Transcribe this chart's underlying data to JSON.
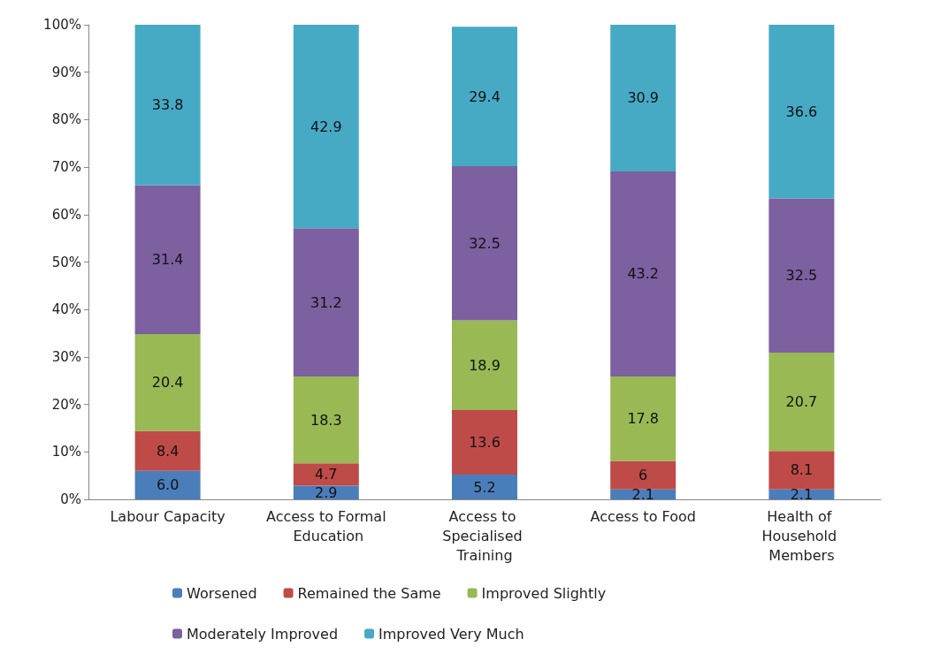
{
  "chart_data": {
    "type": "bar",
    "stacked": true,
    "categories": [
      "Labour Capacity",
      "Access to Formal Education",
      "Access to Specialised Training",
      "Access to Food",
      "Health of Household Members"
    ],
    "series": [
      {
        "name": "Worsened",
        "color": "#4a7ebb",
        "values": [
          6.0,
          2.9,
          5.2,
          2.1,
          2.1
        ],
        "value_labels": [
          "6.0",
          "2.9",
          "5.2",
          "2.1",
          "2.1"
        ]
      },
      {
        "name": "Remained the Same",
        "color": "#be4b48",
        "values": [
          8.4,
          4.7,
          13.6,
          6,
          8.1
        ],
        "value_labels": [
          "8.4",
          "4.7",
          "13.6",
          "6",
          "8.1"
        ]
      },
      {
        "name": "Improved Slightly",
        "color": "#98b954",
        "values": [
          20.4,
          18.3,
          18.9,
          17.8,
          20.7
        ],
        "value_labels": [
          "20.4",
          "18.3",
          "18.9",
          "17.8",
          "20.7"
        ]
      },
      {
        "name": "Moderately Improved",
        "color": "#7d60a0",
        "values": [
          31.4,
          31.2,
          32.5,
          43.2,
          32.5
        ],
        "value_labels": [
          "31.4",
          "31.2",
          "32.5",
          "43.2",
          "32.5"
        ]
      },
      {
        "name": "Improved Very Much",
        "color": "#46aac5",
        "values": [
          33.8,
          42.9,
          29.4,
          30.9,
          36.6
        ],
        "value_labels": [
          "33.8",
          "42.9",
          "29.4",
          "30.9",
          "36.6"
        ]
      }
    ],
    "ylim": [
      0,
      100
    ],
    "yticks": [
      {
        "value": 0,
        "label": "0%"
      },
      {
        "value": 10,
        "label": "10%"
      },
      {
        "value": 20,
        "label": "20%"
      },
      {
        "value": 30,
        "label": "30%"
      },
      {
        "value": 40,
        "label": "40%"
      },
      {
        "value": 50,
        "label": "50%"
      },
      {
        "value": 60,
        "label": "60%"
      },
      {
        "value": 70,
        "label": "70%"
      },
      {
        "value": 80,
        "label": "80%"
      },
      {
        "value": 90,
        "label": "90%"
      },
      {
        "value": 100,
        "label": "100%"
      }
    ],
    "grid": false,
    "legend": "bottom"
  }
}
